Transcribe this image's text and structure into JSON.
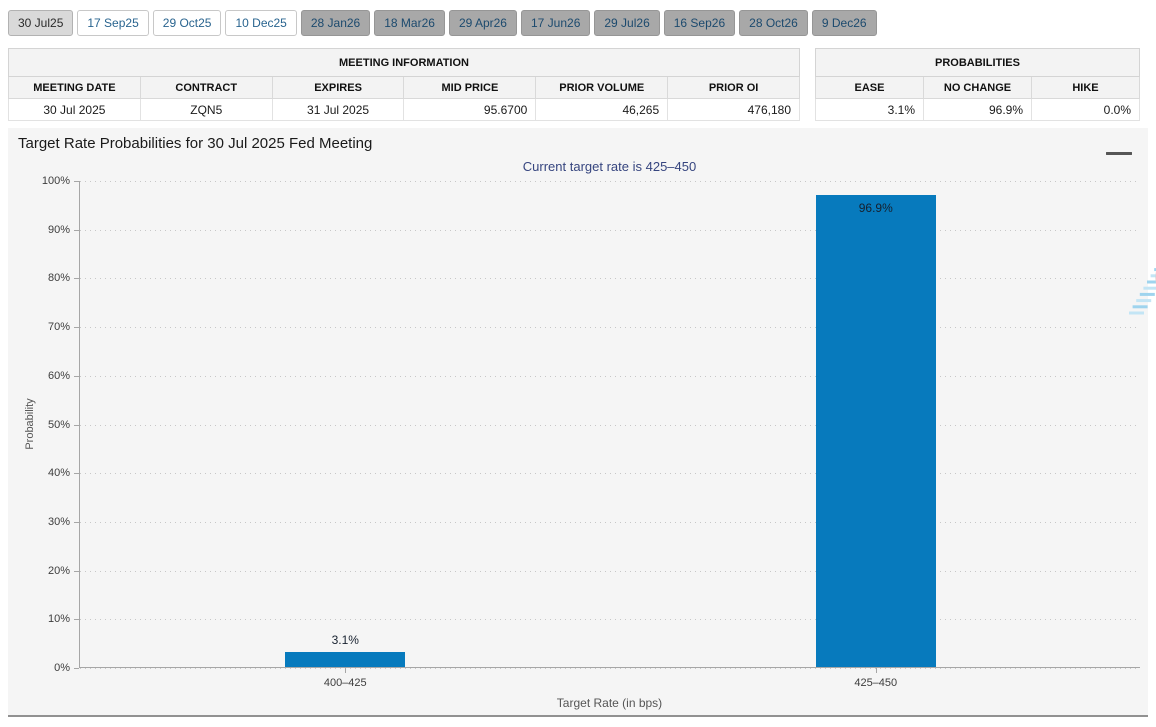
{
  "tabs": [
    {
      "label": "30 Jul25",
      "state": "selected"
    },
    {
      "label": "17 Sep25",
      "state": "active"
    },
    {
      "label": "29 Oct25",
      "state": "active"
    },
    {
      "label": "10 Dec25",
      "state": "active"
    },
    {
      "label": "28 Jan26",
      "state": "inactive"
    },
    {
      "label": "18 Mar26",
      "state": "inactive"
    },
    {
      "label": "29 Apr26",
      "state": "inactive"
    },
    {
      "label": "17 Jun26",
      "state": "inactive"
    },
    {
      "label": "29 Jul26",
      "state": "inactive"
    },
    {
      "label": "16 Sep26",
      "state": "inactive"
    },
    {
      "label": "28 Oct26",
      "state": "inactive"
    },
    {
      "label": "9 Dec26",
      "state": "inactive"
    }
  ],
  "meeting_info": {
    "title": "MEETING INFORMATION",
    "columns": [
      "MEETING DATE",
      "CONTRACT",
      "EXPIRES",
      "MID PRICE",
      "PRIOR VOLUME",
      "PRIOR OI"
    ],
    "row": [
      "30 Jul 2025",
      "ZQN5",
      "31 Jul 2025",
      "95.6700",
      "46,265",
      "476,180"
    ]
  },
  "probabilities": {
    "title": "PROBABILITIES",
    "columns": [
      "EASE",
      "NO CHANGE",
      "HIKE"
    ],
    "row": [
      "3.1%",
      "96.9%",
      "0.0%"
    ]
  },
  "chart": {
    "title": "Target Rate Probabilities for 30 Jul 2025 Fed Meeting",
    "subtitle": "Current target rate is 425–450",
    "menu_icon": "hamburger-menu",
    "watermark_letter": "Q"
  },
  "chart_data": {
    "type": "bar",
    "categories": [
      "400–425",
      "425–450"
    ],
    "values": [
      3.1,
      96.9
    ],
    "value_labels": [
      "3.1%",
      "96.9%"
    ],
    "title": "Target Rate Probabilities for 30 Jul 2025 Fed Meeting",
    "subtitle": "Current target rate is 425–450",
    "xlabel": "Target Rate (in bps)",
    "ylabel": "Probability",
    "ylim": [
      0,
      100
    ],
    "ytick_step": 10,
    "ytick_labels": [
      "0%",
      "10%",
      "20%",
      "30%",
      "40%",
      "50%",
      "60%",
      "70%",
      "80%",
      "90%",
      "100%"
    ],
    "grid": "dotted-horizontal",
    "legend": "none",
    "bar_color": "#077ABD"
  },
  "colors": {
    "bar_blue": "#077ABD",
    "subtitle_navy": "#36457F",
    "tab_link_blue": "#29648F",
    "panel_bg": "#F5F5F5"
  }
}
